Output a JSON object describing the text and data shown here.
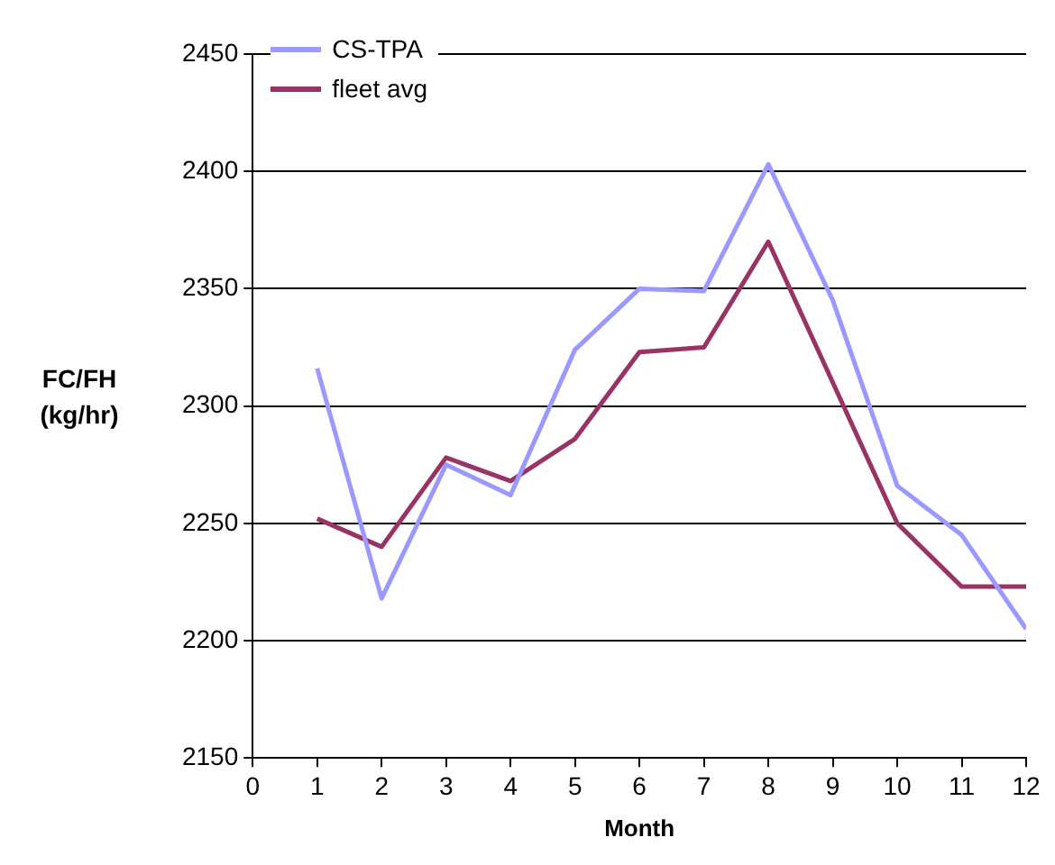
{
  "chart_data": {
    "type": "line",
    "xlabel": "Month",
    "ylabel": "FC/FH\n(kg/hr)",
    "x": [
      1,
      2,
      3,
      4,
      5,
      6,
      7,
      8,
      9,
      10,
      11,
      12
    ],
    "series": [
      {
        "name": "CS-TPA",
        "color": "#9999ff",
        "values": [
          2316,
          2218,
          2275,
          2262,
          2324,
          2350,
          2349,
          2403,
          2345,
          2266,
          2245,
          2205
        ]
      },
      {
        "name": "fleet avg",
        "color": "#993366",
        "values": [
          2252,
          2240,
          2278,
          2268,
          2286,
          2323,
          2325,
          2370,
          2310,
          2250,
          2223,
          2223
        ]
      }
    ],
    "xlim": [
      0,
      12
    ],
    "xticks": [
      0,
      1,
      2,
      3,
      4,
      5,
      6,
      7,
      8,
      9,
      10,
      11,
      12
    ],
    "ylim": [
      2150,
      2450
    ],
    "yticks": [
      2150,
      2200,
      2250,
      2300,
      2350,
      2400,
      2450
    ],
    "grid": "y",
    "legend": "top left",
    "marker": "none",
    "line_style": "solid"
  }
}
